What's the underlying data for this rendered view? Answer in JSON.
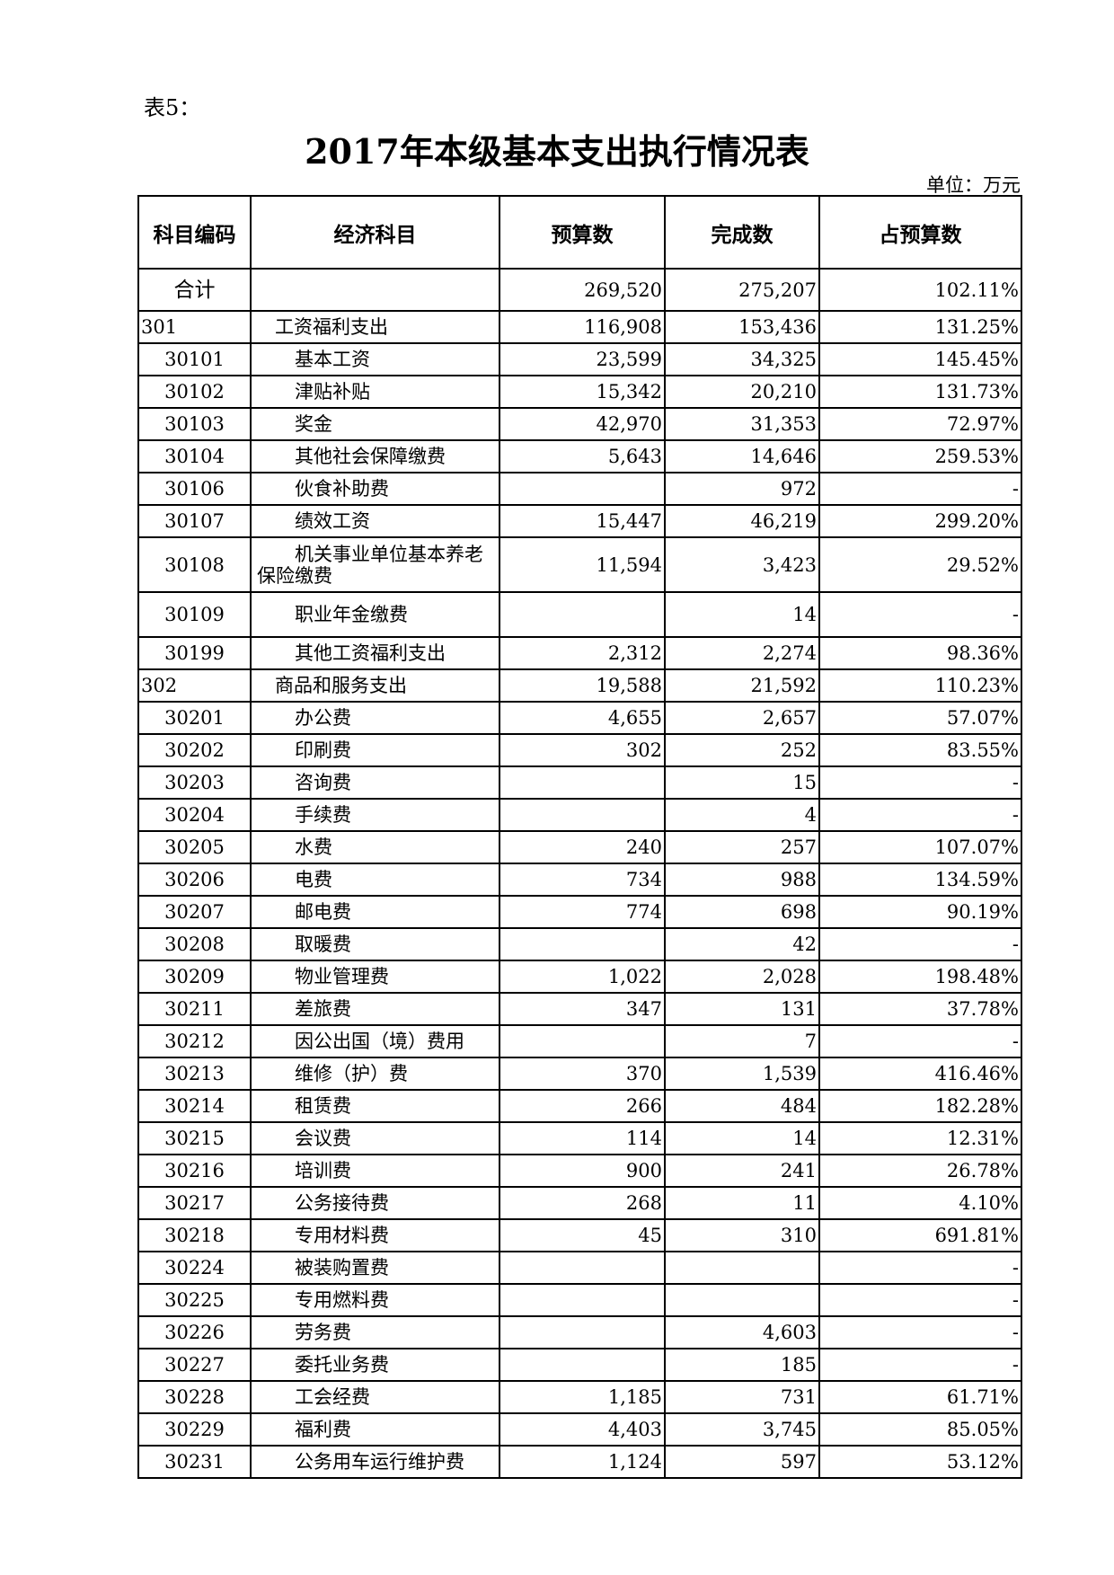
{
  "label": "表5：",
  "title": "2017年本级基本支出执行情况表",
  "unit": "单位：万元",
  "headers": [
    "科目编码",
    "经济科目",
    "预算数",
    "完成数",
    "占预算数"
  ],
  "rows": [
    {
      "code": "合计",
      "name": "",
      "budget": "269,520",
      "actual": "275,207",
      "pct": "102.11%",
      "level": 0
    },
    {
      "code": "301",
      "name": "工资福利支出",
      "budget": "116,908",
      "actual": "153,436",
      "pct": "131.25%",
      "level": 1
    },
    {
      "code": "30101",
      "name": "基本工资",
      "budget": "23,599",
      "actual": "34,325",
      "pct": "145.45%",
      "level": 2
    },
    {
      "code": "30102",
      "name": "津贴补贴",
      "budget": "15,342",
      "actual": "20,210",
      "pct": "131.73%",
      "level": 2
    },
    {
      "code": "30103",
      "name": "奖金",
      "budget": "42,970",
      "actual": "31,353",
      "pct": "72.97%",
      "level": 2
    },
    {
      "code": "30104",
      "name": "其他社会保障缴费",
      "budget": "5,643",
      "actual": "14,646",
      "pct": "259.53%",
      "level": 2
    },
    {
      "code": "30106",
      "name": "伙食补助费",
      "budget": "",
      "actual": "972",
      "pct": "-",
      "level": 2
    },
    {
      "code": "30107",
      "name": "绩效工资",
      "budget": "15,447",
      "actual": "46,219",
      "pct": "299.20%",
      "level": 2
    },
    {
      "code": "30108",
      "name": "机关事业单位基本养老保险缴费",
      "budget": "11,594",
      "actual": "3,423",
      "pct": "29.52%",
      "level": 2,
      "size": "tall"
    },
    {
      "code": "30109",
      "name": "职业年金缴费",
      "budget": "",
      "actual": "14",
      "pct": "-",
      "level": 2,
      "size": "mid"
    },
    {
      "code": "30199",
      "name": "其他工资福利支出",
      "budget": "2,312",
      "actual": "2,274",
      "pct": "98.36%",
      "level": 2
    },
    {
      "code": "302",
      "name": "商品和服务支出",
      "budget": "19,588",
      "actual": "21,592",
      "pct": "110.23%",
      "level": 1
    },
    {
      "code": "30201",
      "name": "办公费",
      "budget": "4,655",
      "actual": "2,657",
      "pct": "57.07%",
      "level": 2
    },
    {
      "code": "30202",
      "name": "印刷费",
      "budget": "302",
      "actual": "252",
      "pct": "83.55%",
      "level": 2
    },
    {
      "code": "30203",
      "name": "咨询费",
      "budget": "",
      "actual": "15",
      "pct": "-",
      "level": 2
    },
    {
      "code": "30204",
      "name": "手续费",
      "budget": "",
      "actual": "4",
      "pct": "-",
      "level": 2
    },
    {
      "code": "30205",
      "name": "水费",
      "budget": "240",
      "actual": "257",
      "pct": "107.07%",
      "level": 2
    },
    {
      "code": "30206",
      "name": "电费",
      "budget": "734",
      "actual": "988",
      "pct": "134.59%",
      "level": 2
    },
    {
      "code": "30207",
      "name": "邮电费",
      "budget": "774",
      "actual": "698",
      "pct": "90.19%",
      "level": 2
    },
    {
      "code": "30208",
      "name": "取暖费",
      "budget": "",
      "actual": "42",
      "pct": "-",
      "level": 2
    },
    {
      "code": "30209",
      "name": "物业管理费",
      "budget": "1,022",
      "actual": "2,028",
      "pct": "198.48%",
      "level": 2
    },
    {
      "code": "30211",
      "name": "差旅费",
      "budget": "347",
      "actual": "131",
      "pct": "37.78%",
      "level": 2
    },
    {
      "code": "30212",
      "name": "因公出国（境）费用",
      "budget": "",
      "actual": "7",
      "pct": "-",
      "level": 2
    },
    {
      "code": "30213",
      "name": "维修（护）费",
      "budget": "370",
      "actual": "1,539",
      "pct": "416.46%",
      "level": 2
    },
    {
      "code": "30214",
      "name": "租赁费",
      "budget": "266",
      "actual": "484",
      "pct": "182.28%",
      "level": 2
    },
    {
      "code": "30215",
      "name": "会议费",
      "budget": "114",
      "actual": "14",
      "pct": "12.31%",
      "level": 2
    },
    {
      "code": "30216",
      "name": "培训费",
      "budget": "900",
      "actual": "241",
      "pct": "26.78%",
      "level": 2
    },
    {
      "code": "30217",
      "name": "公务接待费",
      "budget": "268",
      "actual": "11",
      "pct": "4.10%",
      "level": 2
    },
    {
      "code": "30218",
      "name": "专用材料费",
      "budget": "45",
      "actual": "310",
      "pct": "691.81%",
      "level": 2
    },
    {
      "code": "30224",
      "name": "被装购置费",
      "budget": "",
      "actual": "",
      "pct": "-",
      "level": 2
    },
    {
      "code": "30225",
      "name": "专用燃料费",
      "budget": "",
      "actual": "",
      "pct": "-",
      "level": 2
    },
    {
      "code": "30226",
      "name": "劳务费",
      "budget": "",
      "actual": "4,603",
      "pct": "-",
      "level": 2
    },
    {
      "code": "30227",
      "name": "委托业务费",
      "budget": "",
      "actual": "185",
      "pct": "-",
      "level": 2
    },
    {
      "code": "30228",
      "name": "工会经费",
      "budget": "1,185",
      "actual": "731",
      "pct": "61.71%",
      "level": 2
    },
    {
      "code": "30229",
      "name": "福利费",
      "budget": "4,403",
      "actual": "3,745",
      "pct": "85.05%",
      "level": 2
    },
    {
      "code": "30231",
      "name": "公务用车运行维护费",
      "budget": "1,124",
      "actual": "597",
      "pct": "53.12%",
      "level": 2
    }
  ]
}
